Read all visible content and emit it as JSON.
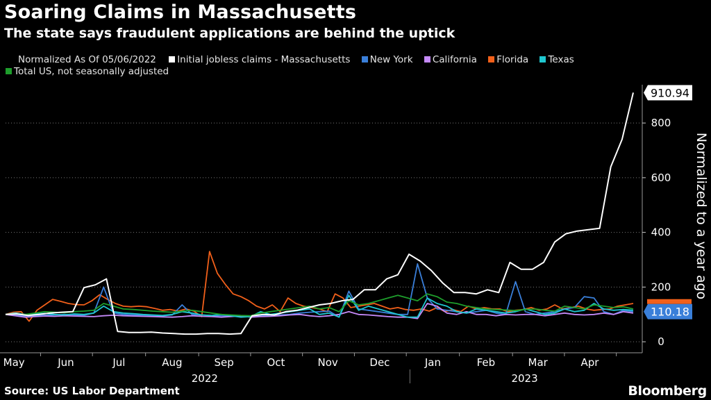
{
  "header": {
    "title": "Soaring Claims in Massachusetts",
    "subtitle": "The state says fraudulent applications are behind the uptick"
  },
  "legend": {
    "note": "Normalized As Of 05/06/2022",
    "items": [
      {
        "label": "Initial jobless claims - Massachusetts",
        "color": "#ffffff"
      },
      {
        "label": "New York",
        "color": "#3a7fd9"
      },
      {
        "label": "California",
        "color": "#c58af9"
      },
      {
        "label": "Florida",
        "color": "#f2601a"
      },
      {
        "label": "Texas",
        "color": "#1fc7cf"
      },
      {
        "label": "Total US, not seasonally adjusted",
        "color": "#1e9e2c"
      }
    ]
  },
  "footer": {
    "source": "Source: US Labor Department",
    "brand": "Bloomberg"
  },
  "chart_data": {
    "type": "line",
    "title": "Soaring Claims in Massachusetts",
    "ylabel": "Normalized to a year ago",
    "xlabel": "",
    "ylim": [
      -20,
      940
    ],
    "yticks": [
      0,
      200,
      400,
      600,
      800
    ],
    "week_count": 52,
    "months": [
      {
        "label": "May",
        "week": 0.7
      },
      {
        "label": "Jun",
        "week": 5.0
      },
      {
        "label": "Jul",
        "week": 9.4
      },
      {
        "label": "Aug",
        "week": 13.8
      },
      {
        "label": "Sep",
        "week": 18.1
      },
      {
        "label": "Oct",
        "week": 22.4
      },
      {
        "label": "Nov",
        "week": 26.7
      },
      {
        "label": "Dec",
        "week": 31.0
      },
      {
        "label": "Jan",
        "week": 35.4
      },
      {
        "label": "Feb",
        "week": 39.8
      },
      {
        "label": "Mar",
        "week": 44.1
      },
      {
        "label": "Apr",
        "week": 48.4
      }
    ],
    "years": [
      {
        "label": "2022",
        "week": 16.5
      },
      {
        "label": "2023",
        "week": 43.0
      }
    ],
    "year_divider_week": 33.5,
    "end_labels": [
      {
        "text": "910.94",
        "value": 910.94,
        "bg": "#ffffff",
        "fg": "#000000"
      },
      {
        "text": "110.18",
        "value": 110.18,
        "bg": "#3a7fd9",
        "fg": "#ffffff"
      }
    ],
    "series": [
      {
        "name": "Florida",
        "color": "#f2601a",
        "values": [
          100,
          108,
          110,
          75,
          115,
          135,
          155,
          148,
          140,
          136,
          135,
          150,
          172,
          155,
          140,
          130,
          128,
          130,
          128,
          122,
          115,
          118,
          112,
          120,
          112,
          92,
          330,
          250,
          210,
          175,
          165,
          150,
          130,
          120,
          135,
          110,
          160,
          140,
          130,
          125,
          120,
          110,
          175,
          160,
          125,
          130,
          135,
          140,
          130,
          120,
          125,
          118,
          115,
          120,
          112,
          125,
          110,
          118,
          110,
          130,
          120,
          125,
          120,
          120,
          110,
          115,
          118,
          125,
          115,
          120,
          135,
          120,
          125,
          130,
          120,
          115,
          118,
          120,
          130,
          135,
          140
        ]
      },
      {
        "name": "New York",
        "color": "#3a7fd9",
        "values": [
          100,
          98,
          95,
          96,
          97,
          98,
          100,
          98,
          97,
          105,
          200,
          105,
          100,
          98,
          97,
          96,
          95,
          98,
          135,
          100,
          98,
          96,
          95,
          94,
          93,
          92,
          95,
          97,
          98,
          100,
          105,
          108,
          110,
          112,
          90,
          185,
          120,
          115,
          110,
          105,
          100,
          100,
          285,
          160,
          120,
          115,
          110,
          105,
          110,
          115,
          105,
          100,
          220,
          110,
          100,
          105,
          110,
          120,
          125,
          165,
          160,
          110,
          100,
          115,
          110
        ]
      },
      {
        "name": "California",
        "color": "#c58af9",
        "values": [
          100,
          95,
          90,
          92,
          94,
          93,
          95,
          94,
          93,
          92,
          95,
          97,
          95,
          94,
          93,
          92,
          91,
          90,
          92,
          95,
          93,
          92,
          90,
          92,
          95,
          90,
          92,
          93,
          95,
          98,
          100,
          95,
          92,
          95,
          100,
          110,
          100,
          98,
          95,
          92,
          90,
          90,
          85,
          140,
          130,
          105,
          100,
          110,
          100,
          100,
          95,
          100,
          98,
          100,
          100,
          95,
          100,
          105,
          100,
          98,
          100,
          105,
          100,
          110,
          105
        ]
      },
      {
        "name": "Texas",
        "color": "#1fc7cf",
        "values": [
          100,
          105,
          100,
          102,
          104,
          100,
          98,
          102,
          100,
          105,
          130,
          110,
          105,
          103,
          100,
          98,
          96,
          100,
          110,
          105,
          98,
          96,
          100,
          95,
          90,
          92,
          110,
          100,
          105,
          110,
          115,
          120,
          100,
          105,
          90,
          170,
          115,
          130,
          120,
          110,
          100,
          90,
          90,
          160,
          140,
          130,
          110,
          105,
          120,
          115,
          110,
          105,
          110,
          120,
          110,
          100,
          105,
          120,
          110,
          115,
          140,
          120,
          115,
          118,
          115
        ]
      },
      {
        "name": "Total US, not seasonally adjusted",
        "color": "#1e9e2c",
        "values": [
          100,
          102,
          100,
          105,
          110,
          108,
          106,
          110,
          112,
          115,
          140,
          130,
          120,
          118,
          115,
          112,
          110,
          108,
          112,
          115,
          110,
          105,
          100,
          98,
          96,
          95,
          105,
          110,
          115,
          120,
          125,
          130,
          120,
          125,
          110,
          150,
          135,
          140,
          150,
          160,
          170,
          160,
          150,
          175,
          165,
          145,
          140,
          130,
          125,
          120,
          118,
          116,
          114,
          118,
          120,
          115,
          112,
          130,
          125,
          120,
          135,
          130,
          125,
          128,
          120
        ]
      },
      {
        "name": "Initial jobless claims - Massachusetts",
        "color": "#ffffff",
        "values": [
          100,
          102,
          96,
          100,
          105,
          108,
          110,
          198,
          208,
          230,
          38,
          34,
          34,
          35,
          32,
          30,
          28,
          28,
          30,
          30,
          28,
          30,
          95,
          100,
          98,
          110,
          115,
          125,
          135,
          140,
          150,
          155,
          190,
          190,
          230,
          245,
          320,
          295,
          260,
          215,
          180,
          180,
          175,
          190,
          180,
          290,
          265,
          265,
          290,
          365,
          395,
          405,
          410,
          415,
          640,
          740,
          910.94
        ]
      }
    ]
  }
}
